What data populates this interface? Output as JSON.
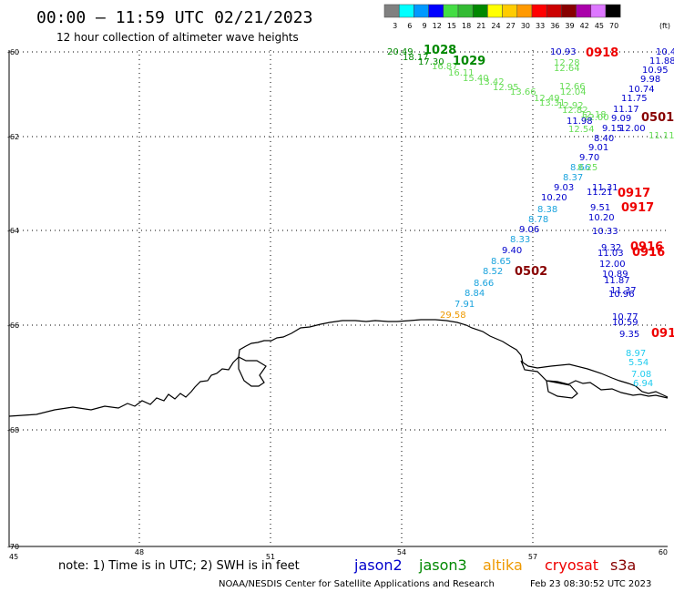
{
  "title": "00:00 – 11:59 UTC 02/21/2023",
  "subtitle": "12 hour collection of altimeter wave heights",
  "legend": {
    "unit": "(ft)",
    "bins": [
      {
        "label": "3",
        "color": "#808080"
      },
      {
        "label": "6",
        "color": "#00ffff"
      },
      {
        "label": "9",
        "color": "#0099ff"
      },
      {
        "label": "12",
        "color": "#0000ff"
      },
      {
        "label": "15",
        "color": "#44dd44"
      },
      {
        "label": "18",
        "color": "#33bb33"
      },
      {
        "label": "21",
        "color": "#008800"
      },
      {
        "label": "24",
        "color": "#ffff00"
      },
      {
        "label": "27",
        "color": "#ffcc00"
      },
      {
        "label": "30",
        "color": "#ff9900"
      },
      {
        "label": "33",
        "color": "#ff0000"
      },
      {
        "label": "36",
        "color": "#cc0000"
      },
      {
        "label": "39",
        "color": "#880000"
      },
      {
        "label": "42",
        "color": "#aa00aa"
      },
      {
        "label": "45",
        "color": "#dd77ff"
      },
      {
        "label": "70",
        "color": "#000000"
      }
    ]
  },
  "axes": {
    "lat_labels": [
      "-60",
      "-62",
      "-64",
      "-66",
      "-68",
      "-70"
    ],
    "lon_labels": [
      "45",
      "48",
      "51",
      "54",
      "57",
      "60"
    ]
  },
  "colors": {
    "navy": "#0000cc",
    "blue": "#2255cc",
    "sky": "#1aa3dd",
    "cyan": "#22ccee",
    "lgreen": "#66dd55",
    "green": "#008800",
    "orange": "#ee9900",
    "red": "#ee0000",
    "darkred": "#880000"
  },
  "observations": [
    {
      "t": "20.49",
      "c": "green"
    },
    {
      "t": "1028",
      "c": "green",
      "cycle": true
    },
    {
      "t": "18.17",
      "c": "green"
    },
    {
      "t": "17.30",
      "c": "green"
    },
    {
      "t": "16.87",
      "c": "lgreen"
    },
    {
      "t": "1029",
      "c": "green",
      "cycle": true
    },
    {
      "t": "16.11",
      "c": "lgreen"
    },
    {
      "t": "15.40",
      "c": "lgreen"
    },
    {
      "t": "13.42",
      "c": "lgreen"
    },
    {
      "t": "12.95",
      "c": "lgreen"
    },
    {
      "t": "13.66",
      "c": "lgreen"
    },
    {
      "t": "12.49",
      "c": "lgreen"
    },
    {
      "t": "13.31",
      "c": "lgreen"
    },
    {
      "t": "12.92",
      "c": "lgreen"
    },
    {
      "t": "12.82",
      "c": "lgreen"
    },
    {
      "t": "12.00",
      "c": "lgreen"
    },
    {
      "t": "12.54",
      "c": "lgreen"
    },
    {
      "t": "12.28",
      "c": "lgreen"
    },
    {
      "t": "12.64",
      "c": "lgreen"
    },
    {
      "t": "12.66",
      "c": "lgreen"
    },
    {
      "t": "12.04",
      "c": "lgreen"
    },
    {
      "t": "11.11",
      "c": "lgreen"
    },
    {
      "t": "12.18",
      "c": "lgreen"
    },
    {
      "t": "10.93",
      "c": "navy"
    },
    {
      "t": "0918",
      "c": "red",
      "cycle": true
    },
    {
      "t": "10.4",
      "c": "navy"
    },
    {
      "t": "11.88",
      "c": "navy"
    },
    {
      "t": "10.95",
      "c": "navy"
    },
    {
      "t": "9.98",
      "c": "navy"
    },
    {
      "t": "10.74",
      "c": "navy"
    },
    {
      "t": "11.75",
      "c": "navy"
    },
    {
      "t": "11.17",
      "c": "navy"
    },
    {
      "t": "11.98",
      "c": "navy"
    },
    {
      "t": "9.09",
      "c": "navy"
    },
    {
      "t": "0501",
      "c": "darkred",
      "cycle": true
    },
    {
      "t": "9.15",
      "c": "navy"
    },
    {
      "t": "12.00",
      "c": "navy"
    },
    {
      "t": "8.40",
      "c": "navy"
    },
    {
      "t": "9.01",
      "c": "navy"
    },
    {
      "t": "9.70",
      "c": "navy"
    },
    {
      "t": "8.66",
      "c": "sky"
    },
    {
      "t": "8.37",
      "c": "sky"
    },
    {
      "t": "8.25",
      "c": "lgreen"
    },
    {
      "t": "9.03",
      "c": "navy"
    },
    {
      "t": "11.31",
      "c": "navy"
    },
    {
      "t": "11.21",
      "c": "navy"
    },
    {
      "t": "0917",
      "c": "red",
      "cycle": true
    },
    {
      "t": "10.20",
      "c": "navy"
    },
    {
      "t": "8.38",
      "c": "sky"
    },
    {
      "t": "9.51",
      "c": "navy"
    },
    {
      "t": "0917",
      "c": "red",
      "cycle": true
    },
    {
      "t": "8.78",
      "c": "sky"
    },
    {
      "t": "10.20",
      "c": "navy"
    },
    {
      "t": "9.06",
      "c": "navy"
    },
    {
      "t": "10.33",
      "c": "navy"
    },
    {
      "t": "8.33",
      "c": "sky"
    },
    {
      "t": "9.32",
      "c": "navy"
    },
    {
      "t": "0916",
      "c": "red",
      "cycle": true
    },
    {
      "t": "9.40",
      "c": "navy"
    },
    {
      "t": "11.03",
      "c": "navy"
    },
    {
      "t": "0916",
      "c": "red",
      "cycle": true
    },
    {
      "t": "8.65",
      "c": "sky"
    },
    {
      "t": "12.00",
      "c": "navy"
    },
    {
      "t": "8.52",
      "c": "sky"
    },
    {
      "t": "0502",
      "c": "darkred",
      "cycle": true
    },
    {
      "t": "10.89",
      "c": "navy"
    },
    {
      "t": "8.66",
      "c": "sky"
    },
    {
      "t": "11.87",
      "c": "navy"
    },
    {
      "t": "8.84",
      "c": "sky"
    },
    {
      "t": "11.37",
      "c": "navy"
    },
    {
      "t": "10.96",
      "c": "navy"
    },
    {
      "t": "7.91",
      "c": "sky"
    },
    {
      "t": "29.58",
      "c": "orange"
    },
    {
      "t": "10.77",
      "c": "navy"
    },
    {
      "t": "10.59",
      "c": "navy"
    },
    {
      "t": "9.35",
      "c": "navy"
    },
    {
      "t": "091",
      "c": "red",
      "cycle": true
    },
    {
      "t": "8.97",
      "c": "cyan"
    },
    {
      "t": "5.54",
      "c": "cyan"
    },
    {
      "t": "7.08",
      "c": "cyan"
    },
    {
      "t": "6.94",
      "c": "cyan"
    }
  ],
  "footer": {
    "note": "note: 1) Time is in UTC; 2) SWH is in feet",
    "satellites": [
      {
        "name": "jason2",
        "color": "#0000cc"
      },
      {
        "name": "jason3",
        "color": "#008800"
      },
      {
        "name": "altika",
        "color": "#ee9900"
      },
      {
        "name": "cryosat",
        "color": "#ee0000"
      },
      {
        "name": "s3a",
        "color": "#880000"
      }
    ],
    "credit": "NOAA/NESDIS Center for Satellite Applications and Research",
    "timestamp": "Feb 23 08:30:52 UTC 2023"
  }
}
